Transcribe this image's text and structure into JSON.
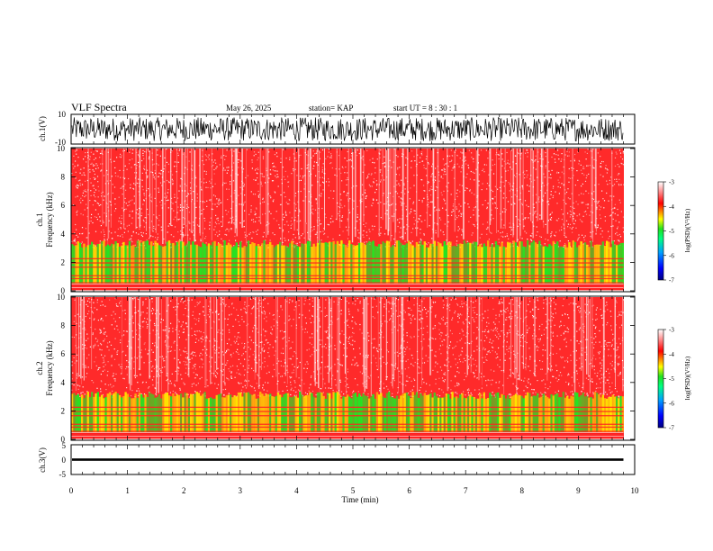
{
  "header": {
    "title": "VLF Spectra",
    "date": "May 26, 2025",
    "station": "station= KAP",
    "start": "start  UT  =   8  : 30 : 1"
  },
  "colors": {
    "spec_bg": "#ff2a2a",
    "speckle": "#ffffff",
    "band_yellow": "#ffe600",
    "band_green": "#22e622",
    "trace": "#000000"
  },
  "chart_data": [
    {
      "type": "line",
      "name": "ch1-waveform",
      "ylabel": "ch.1(V)",
      "yticks": [
        "10",
        "-10"
      ],
      "ylim": [
        -10,
        10
      ],
      "xlim": [
        0,
        10
      ],
      "amplitude_range": [
        -8,
        8
      ]
    },
    {
      "type": "heatmap",
      "name": "ch1-spectrogram",
      "ylabel": [
        "ch.1",
        "Frequency (kHz)"
      ],
      "yticks": [
        "0",
        "2",
        "4",
        "6",
        "8",
        "10"
      ],
      "ylim": [
        0,
        10
      ],
      "xlim": [
        0,
        9.8
      ],
      "high_power_band_khz": [
        0.5,
        3.3
      ],
      "colorbar": {
        "label": "log(PSD)(V²/Hz)",
        "ticks": [
          "-3",
          "-4",
          "-5",
          "-6",
          "-7"
        ],
        "range": [
          -7,
          -3
        ]
      }
    },
    {
      "type": "heatmap",
      "name": "ch2-spectrogram",
      "ylabel": [
        "ch.2",
        "Frequency (kHz)"
      ],
      "yticks": [
        "0",
        "2",
        "4",
        "6",
        "8",
        "10"
      ],
      "ylim": [
        0,
        10
      ],
      "xlim": [
        0,
        9.8
      ],
      "high_power_band_khz": [
        0.5,
        3.1
      ],
      "colorbar": {
        "label": "log(PSD)(V²/Hz)",
        "ticks": [
          "-3",
          "-4",
          "-5",
          "-6",
          "-7"
        ],
        "range": [
          -7,
          -3
        ]
      }
    },
    {
      "type": "line",
      "name": "ch3-waveform",
      "ylabel": "ch.3(V)",
      "yticks": [
        "5",
        "0",
        "-5"
      ],
      "ylim": [
        -5,
        5
      ],
      "xlim": [
        0,
        10
      ],
      "level_v": [
        -0.4,
        0.4
      ]
    }
  ],
  "xaxis": {
    "label": "Time  (min)",
    "ticks": [
      "0",
      "1",
      "2",
      "3",
      "4",
      "5",
      "6",
      "7",
      "8",
      "9",
      "10"
    ],
    "xlim": [
      0,
      10
    ]
  }
}
